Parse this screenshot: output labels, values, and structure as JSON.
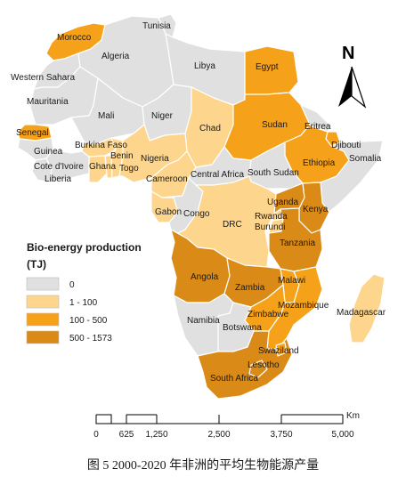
{
  "legend": {
    "title": "Bio-energy production",
    "unit": "(TJ)",
    "classes": [
      {
        "label": "0",
        "color": "#e0e0e0"
      },
      {
        "label": "1 - 100",
        "color": "#fdd58c"
      },
      {
        "label": "100 - 500",
        "color": "#f5a21a"
      },
      {
        "label": "500 - 1573",
        "color": "#da8a16"
      }
    ]
  },
  "north_arrow": {
    "label": "N"
  },
  "scale_bar": {
    "unit": "Km",
    "ticks": [
      "0",
      "625",
      "1,250",
      "2,500",
      "3,750",
      "5,000"
    ]
  },
  "caption": "图 5 2000-2020 年非洲的平均生物能源产量",
  "countries": [
    {
      "name": "Morocco",
      "class": 2
    },
    {
      "name": "Western Sahara",
      "class": 0
    },
    {
      "name": "Algeria",
      "class": 0
    },
    {
      "name": "Tunisia",
      "class": 0
    },
    {
      "name": "Libya",
      "class": 0
    },
    {
      "name": "Egypt",
      "class": 2
    },
    {
      "name": "Mauritania",
      "class": 0
    },
    {
      "name": "Mali",
      "class": 0
    },
    {
      "name": "Niger",
      "class": 0
    },
    {
      "name": "Chad",
      "class": 1
    },
    {
      "name": "Sudan",
      "class": 2
    },
    {
      "name": "Eritrea",
      "class": 0
    },
    {
      "name": "Djibouti",
      "class": 2
    },
    {
      "name": "Ethiopia",
      "class": 2
    },
    {
      "name": "Somalia",
      "class": 0
    },
    {
      "name": "Senegal",
      "class": 2
    },
    {
      "name": "Guinea",
      "class": 0
    },
    {
      "name": "Burkina Faso",
      "class": 1
    },
    {
      "name": "Cote d'Ivoire",
      "class": 0
    },
    {
      "name": "Liberia",
      "class": 0
    },
    {
      "name": "Ghana",
      "class": 1
    },
    {
      "name": "Togo",
      "class": 1
    },
    {
      "name": "Benin",
      "class": 1
    },
    {
      "name": "Nigeria",
      "class": 1
    },
    {
      "name": "Cameroon",
      "class": 1
    },
    {
      "name": "Central Africa",
      "class": 0
    },
    {
      "name": "South Sudan",
      "class": 0
    },
    {
      "name": "Gabon",
      "class": 1
    },
    {
      "name": "Congo",
      "class": 0
    },
    {
      "name": "DRC",
      "class": 1
    },
    {
      "name": "Uganda",
      "class": 3
    },
    {
      "name": "Kenya",
      "class": 3
    },
    {
      "name": "Rwanda",
      "class": 1
    },
    {
      "name": "Burundi",
      "class": 1
    },
    {
      "name": "Tanzania",
      "class": 3
    },
    {
      "name": "Angola",
      "class": 3
    },
    {
      "name": "Zambia",
      "class": 3
    },
    {
      "name": "Malawi",
      "class": 2
    },
    {
      "name": "Mozambique",
      "class": 2
    },
    {
      "name": "Zimbabwe",
      "class": 2
    },
    {
      "name": "Namibia",
      "class": 0
    },
    {
      "name": "Botswana",
      "class": 0
    },
    {
      "name": "South Africa",
      "class": 3
    },
    {
      "name": "Lesotho",
      "class": 3
    },
    {
      "name": "Swaziland",
      "class": 2
    },
    {
      "name": "Madagascar",
      "class": 1
    }
  ]
}
